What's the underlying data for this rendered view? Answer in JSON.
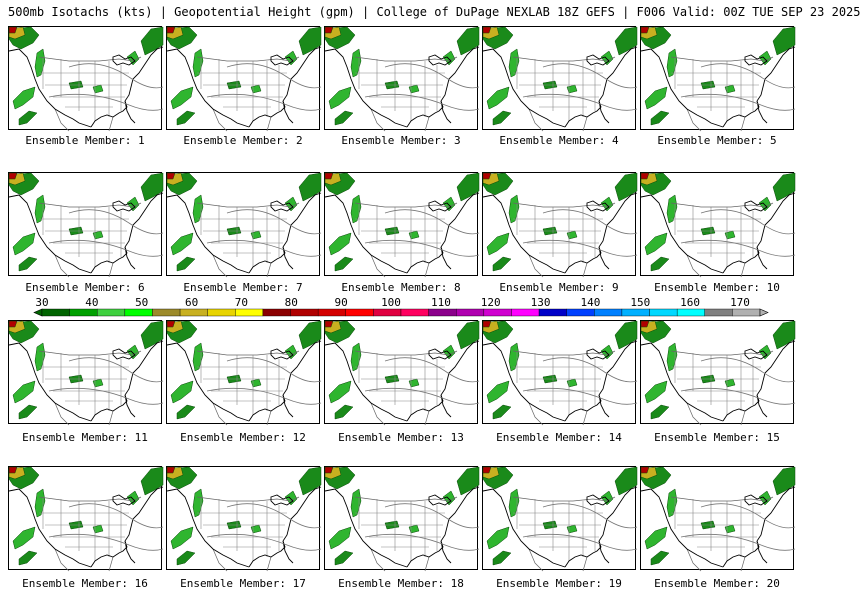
{
  "header": {
    "title": "500mb Isotachs (kts) | Geopotential Height (gpm) | College of DuPage NEXLAB   18Z GEFS | F006 Valid: 00Z TUE SEP 23 2025"
  },
  "members": [
    {
      "label": "Ensemble Member: 1"
    },
    {
      "label": "Ensemble Member: 2"
    },
    {
      "label": "Ensemble Member: 3"
    },
    {
      "label": "Ensemble Member: 4"
    },
    {
      "label": "Ensemble Member: 5"
    },
    {
      "label": "Ensemble Member: 6"
    },
    {
      "label": "Ensemble Member: 7"
    },
    {
      "label": "Ensemble Member: 8"
    },
    {
      "label": "Ensemble Member: 9"
    },
    {
      "label": "Ensemble Member: 10"
    },
    {
      "label": "Ensemble Member: 11"
    },
    {
      "label": "Ensemble Member: 12"
    },
    {
      "label": "Ensemble Member: 13"
    },
    {
      "label": "Ensemble Member: 14"
    },
    {
      "label": "Ensemble Member: 15"
    },
    {
      "label": "Ensemble Member: 16"
    },
    {
      "label": "Ensemble Member: 17"
    },
    {
      "label": "Ensemble Member: 18"
    },
    {
      "label": "Ensemble Member: 19"
    },
    {
      "label": "Ensemble Member: 20"
    }
  ],
  "colorbar": {
    "tick_labels": [
      "30",
      "40",
      "50",
      "60",
      "70",
      "80",
      "90",
      "100",
      "110",
      "120",
      "130",
      "140",
      "150",
      "160",
      "170"
    ],
    "colors": [
      "#006400",
      "#00a000",
      "#3fd03f",
      "#00ff00",
      "#9c8a2a",
      "#c8b020",
      "#e8d400",
      "#ffff00",
      "#8b0000",
      "#b00000",
      "#d40000",
      "#ff0000",
      "#e00040",
      "#ff0060",
      "#8b008b",
      "#b000b0",
      "#d000d0",
      "#ff00ff",
      "#0000c8",
      "#0040ff",
      "#0080ff",
      "#00b0ff",
      "#00d8ff",
      "#00ffff",
      "#808080",
      "#b0b0b0"
    ],
    "levels": [
      30,
      35,
      40,
      45,
      50,
      55,
      60,
      65,
      70,
      75,
      80,
      85,
      90,
      95,
      100,
      105,
      110,
      115,
      120,
      125,
      130,
      140,
      150,
      160,
      165,
      170
    ]
  }
}
